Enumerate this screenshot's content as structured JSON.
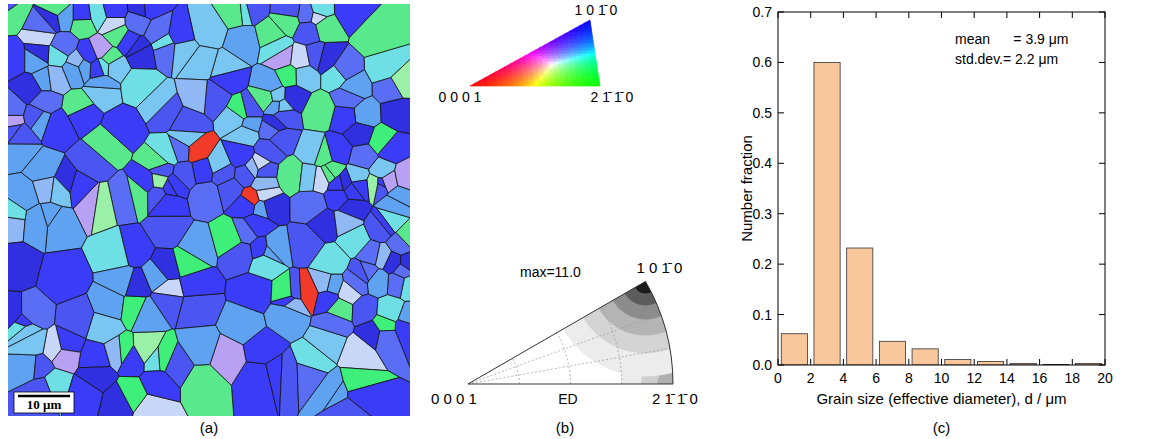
{
  "panels": {
    "a": {
      "label": "(a)",
      "scale_bar": "10 μm"
    },
    "b": {
      "label": "(b)",
      "key_labels": {
        "top": "1 0 1̄ 0",
        "left": "0 0 0 1",
        "right": "2 1̄ 1̄ 0"
      },
      "ipf_labels": {
        "max": "max=11.0",
        "top": "1 0 1̄ 0",
        "left": "0 0 0 1",
        "mid": "ED",
        "right": "2 1̄ 1̄ 0"
      }
    },
    "c": {
      "label": "(c)"
    }
  },
  "chart_data": {
    "type": "histogram",
    "x_label": "Grain size (effective diameter), d / μm",
    "y_label": "Number fraction",
    "bins": [
      0,
      2,
      4,
      6,
      8,
      10,
      12,
      14,
      16,
      18,
      20
    ],
    "values": [
      0.062,
      0.6,
      0.232,
      0.047,
      0.032,
      0.011,
      0.007,
      0.003,
      0.001,
      0.003
    ],
    "color": "#f9c79c",
    "xlim": [
      0,
      20
    ],
    "ylim": [
      0,
      0.7
    ],
    "xticks": [
      0,
      2,
      4,
      6,
      8,
      10,
      12,
      14,
      16,
      18,
      20
    ],
    "yticks": [
      {
        "value": 0,
        "label": "0.0"
      },
      0.1,
      0.2,
      0.3,
      0.4,
      0.5,
      0.6,
      0.7
    ],
    "annotations": [
      "mean      = 3.9 μm",
      "std.dev.= 2.2 μm"
    ],
    "grid": false
  }
}
